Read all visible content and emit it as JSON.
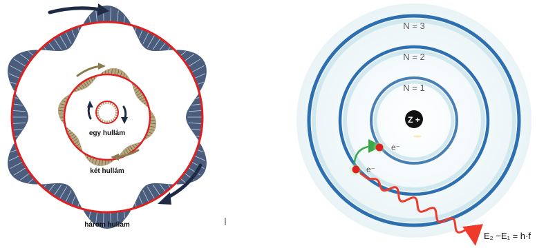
{
  "de_broglie": {
    "labels": {
      "one_wave": "egy hullám",
      "two_waves": "két hullám",
      "three_waves": "három hullám"
    },
    "colors": {
      "orbit": "#e02020",
      "wave_fill": "#4b5d7d",
      "wave_inner": "#b8a882",
      "arrow_dark": "#1f2a44",
      "arrow_olive": "#8a7a50"
    }
  },
  "bohr": {
    "nucleus_label": "Z +",
    "shells": [
      {
        "label": "N = 1"
      },
      {
        "label": "N = 2"
      },
      {
        "label": "N = 3"
      }
    ],
    "electron_label": "e⁻",
    "equation": "E₂ −E₁ = h·f",
    "colors": {
      "shell": "#2e6fb0",
      "shell_inner": "#4a7fb5",
      "glow": "#e6f2f6",
      "nucleus": "#111111",
      "electron": "#e02020",
      "jump_arrow": "#3aa84a",
      "photon": "#ee3a2a"
    }
  }
}
